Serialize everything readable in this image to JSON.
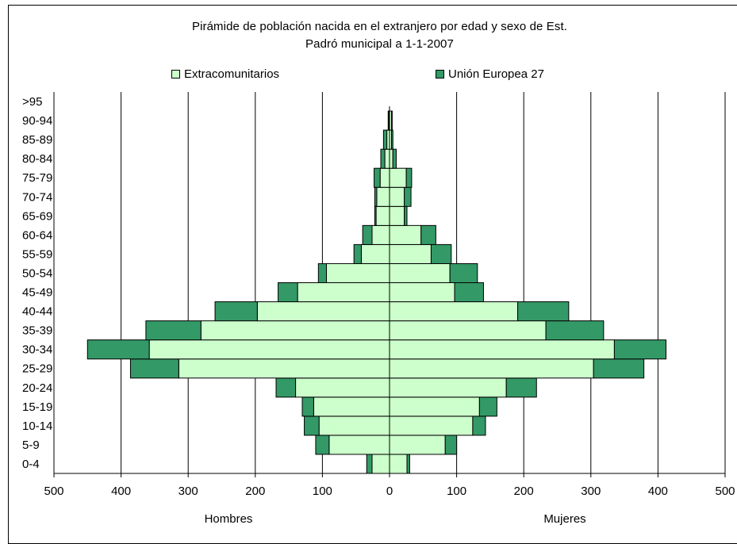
{
  "chart_data": {
    "type": "bar",
    "orientation": "horizontal-population-pyramid",
    "stacked": true,
    "title": "Pirámide de población nacida en el extranjero por edad y sexo de Est.",
    "subtitle": "Padró municipal a 1-1-2007",
    "xlabel_left": "Hombres",
    "xlabel_right": "Mujeres",
    "xlim": [
      -500,
      500
    ],
    "xticks": [
      "500",
      "400",
      "300",
      "200",
      "100",
      "0",
      "100",
      "200",
      "300",
      "400",
      "500"
    ],
    "grid": "vertical",
    "legend_position": "top",
    "categories": [
      "0-4",
      "5-9",
      "10-14",
      "15-19",
      "20-24",
      "25-29",
      "30-34",
      "35-39",
      "40-44",
      "45-49",
      "50-54",
      "55-59",
      "60-64",
      "65-69",
      "70-74",
      "75-79",
      "80-84",
      "85-89",
      "90-94",
      ">95"
    ],
    "series": [
      {
        "name": "Extracomunitarios",
        "color": "#ccffcc",
        "hombres": [
          26,
          90,
          105,
          113,
          140,
          314,
          358,
          281,
          197,
          137,
          94,
          42,
          26,
          20,
          19,
          14,
          7,
          4,
          1,
          0
        ],
        "mujeres": [
          26,
          83,
          124,
          134,
          174,
          304,
          335,
          233,
          191,
          97,
          90,
          62,
          47,
          22,
          22,
          25,
          5,
          3,
          3,
          0
        ]
      },
      {
        "name": "Unión Europea 27",
        "color": "#339966",
        "hombres": [
          8,
          20,
          22,
          17,
          29,
          72,
          92,
          82,
          63,
          29,
          12,
          11,
          14,
          2,
          3,
          9,
          6,
          5,
          1,
          0
        ],
        "mujeres": [
          4,
          17,
          19,
          26,
          45,
          75,
          77,
          86,
          76,
          43,
          41,
          30,
          22,
          4,
          10,
          8,
          5,
          2,
          1,
          0
        ]
      }
    ]
  }
}
